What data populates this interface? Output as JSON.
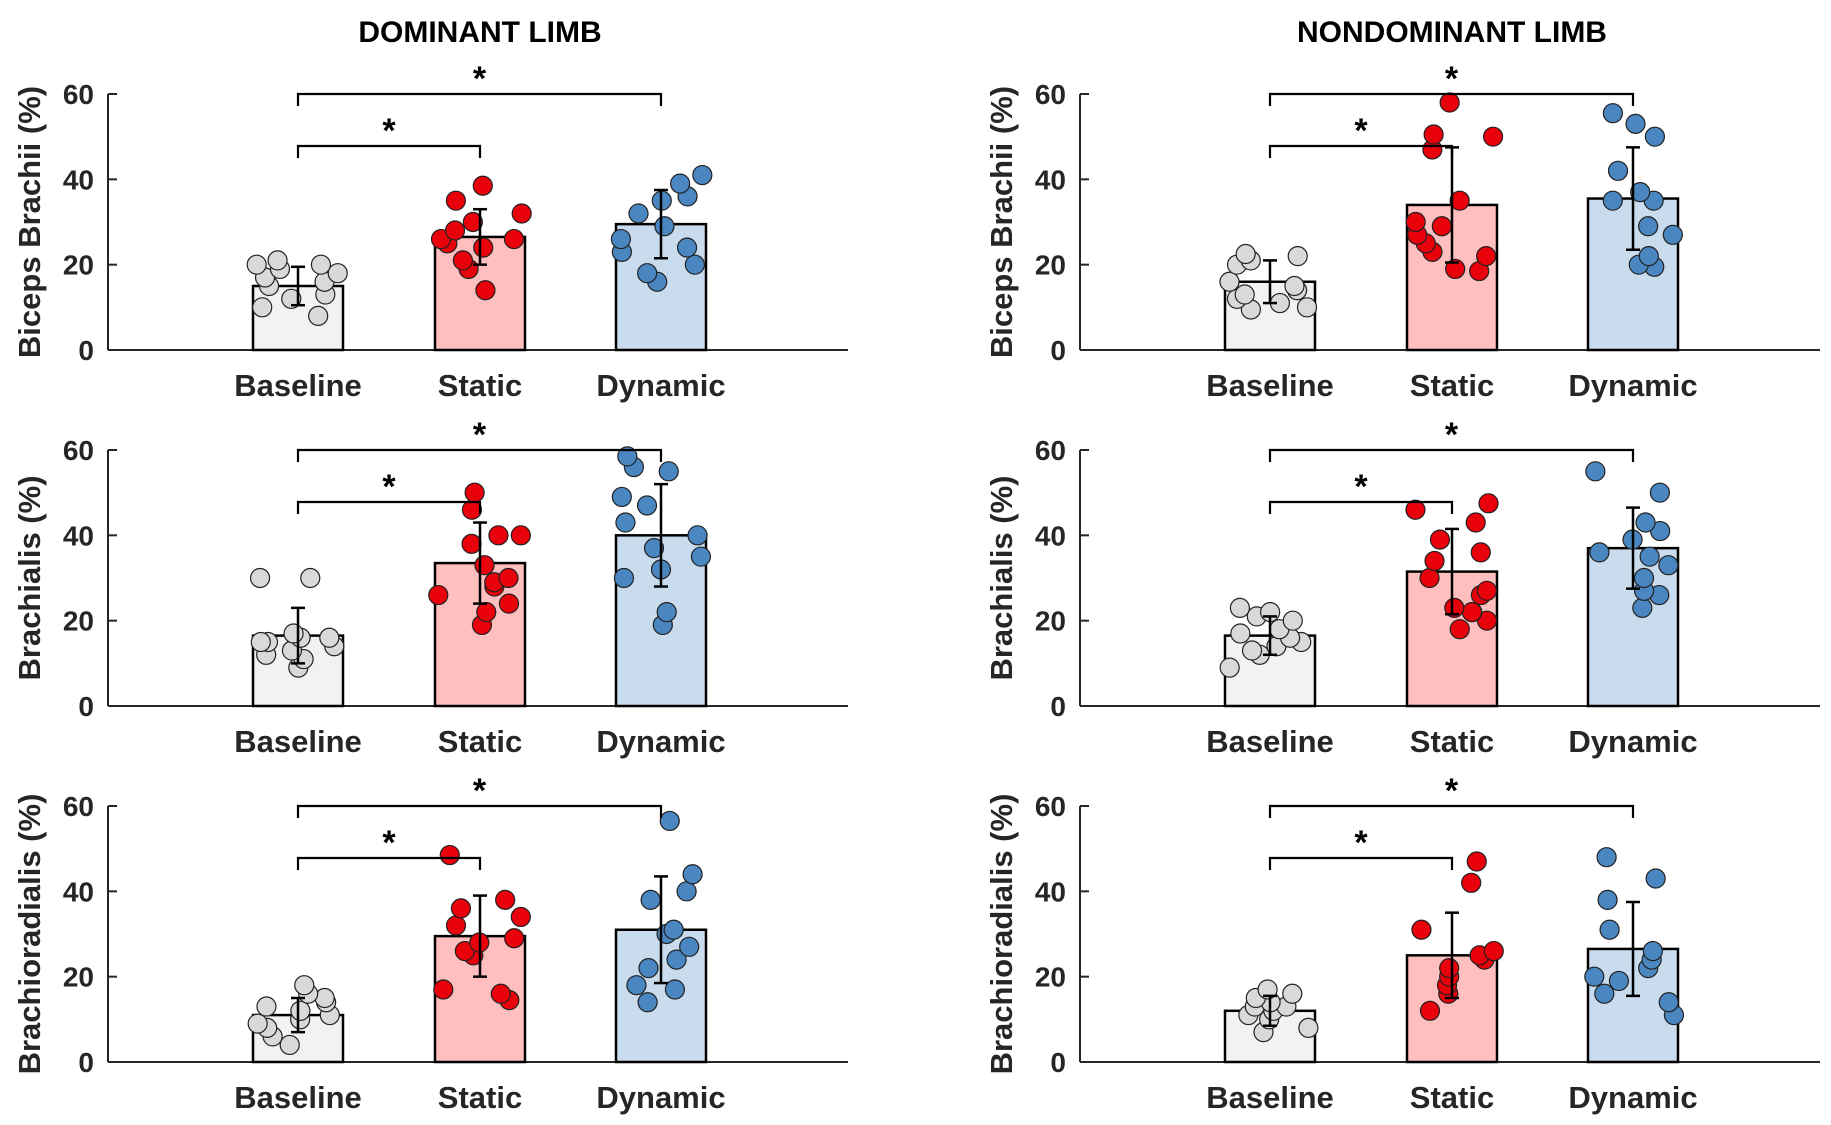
{
  "colors": {
    "baseline_fill": "#f2f2f2",
    "baseline_point": "#d9d9d9",
    "static_fill": "#ffbfbf",
    "static_point": "#e8000b",
    "dynamic_fill": "#c9dcee",
    "dynamic_point": "#4a86c0",
    "axis": "#262626"
  },
  "columns": [
    "DOMINANT LIMB",
    "NONDOMINANT LIMB"
  ],
  "chart_data": [
    {
      "type": "bar",
      "panel": "dominant-biceps",
      "column_title": "DOMINANT LIMB",
      "ylabel": "Biceps Brachii (%)",
      "ylim": [
        0,
        60
      ],
      "yticks": [
        0,
        20,
        40,
        60
      ],
      "categories": [
        "Baseline",
        "Static",
        "Dynamic"
      ],
      "means": [
        15,
        26.5,
        29.5
      ],
      "sd": [
        4.5,
        6.5,
        8
      ],
      "points": [
        [
          8,
          10,
          12,
          13,
          15,
          16,
          17,
          18,
          19,
          20,
          20,
          21
        ],
        [
          14,
          19,
          21,
          24,
          25,
          26,
          26,
          28,
          30,
          32,
          35,
          38.5
        ],
        [
          16,
          18,
          20,
          23,
          24,
          26,
          29,
          32,
          35,
          36,
          39,
          41
        ]
      ],
      "significance": [
        {
          "from": "Baseline",
          "to": "Static",
          "label": "*"
        },
        {
          "from": "Baseline",
          "to": "Dynamic",
          "label": "*"
        }
      ]
    },
    {
      "type": "bar",
      "panel": "nondominant-biceps",
      "column_title": "NONDOMINANT LIMB",
      "ylabel": "Biceps Brachii (%)",
      "ylim": [
        0,
        60
      ],
      "yticks": [
        0,
        20,
        40,
        60
      ],
      "categories": [
        "Baseline",
        "Static",
        "Dynamic"
      ],
      "means": [
        16,
        34,
        35.5
      ],
      "sd": [
        5,
        13.5,
        12
      ],
      "points": [
        [
          9.5,
          10,
          11,
          12,
          13,
          14,
          15,
          16,
          20,
          21,
          22,
          22.5
        ],
        [
          18.5,
          19,
          22,
          23,
          25,
          27,
          29,
          30,
          35,
          47,
          50,
          50.5,
          58
        ],
        [
          19.5,
          20,
          22,
          27,
          29,
          35,
          35,
          37,
          42,
          50,
          53,
          55.5
        ]
      ],
      "significance": [
        {
          "from": "Baseline",
          "to": "Static",
          "label": "*"
        },
        {
          "from": "Baseline",
          "to": "Dynamic",
          "label": "*"
        }
      ]
    },
    {
      "type": "bar",
      "panel": "dominant-brachialis",
      "column_title": "DOMINANT LIMB",
      "ylabel": "Brachialis (%)",
      "ylim": [
        0,
        60
      ],
      "yticks": [
        0,
        20,
        40,
        60
      ],
      "categories": [
        "Baseline",
        "Static",
        "Dynamic"
      ],
      "means": [
        16.5,
        33.5,
        40
      ],
      "sd": [
        6.5,
        9.5,
        12
      ],
      "points": [
        [
          9,
          11,
          12,
          13,
          14,
          15,
          15,
          16,
          16,
          17,
          30,
          30
        ],
        [
          19,
          22,
          24,
          26,
          28,
          29,
          30,
          33,
          38,
          40,
          40,
          46,
          50
        ],
        [
          19,
          22,
          30,
          32,
          35,
          37,
          40,
          43,
          47,
          49,
          55,
          56,
          58.5
        ]
      ],
      "significance": [
        {
          "from": "Baseline",
          "to": "Static",
          "label": "*"
        },
        {
          "from": "Baseline",
          "to": "Dynamic",
          "label": "*"
        }
      ]
    },
    {
      "type": "bar",
      "panel": "nondominant-brachialis",
      "column_title": "NONDOMINANT LIMB",
      "ylabel": "Brachialis (%)",
      "ylim": [
        0,
        60
      ],
      "yticks": [
        0,
        20,
        40,
        60
      ],
      "categories": [
        "Baseline",
        "Static",
        "Dynamic"
      ],
      "means": [
        16.5,
        31.5,
        37
      ],
      "sd": [
        4.5,
        10,
        9.5
      ],
      "points": [
        [
          9,
          12,
          13,
          14,
          15,
          16,
          17,
          18,
          20,
          21,
          22,
          23
        ],
        [
          18,
          20,
          22,
          22,
          23,
          26,
          27,
          30,
          34,
          36,
          39,
          43,
          46,
          47.5
        ],
        [
          23,
          26,
          27,
          30,
          33,
          35,
          36,
          39,
          41,
          43,
          50,
          55
        ]
      ],
      "significance": [
        {
          "from": "Baseline",
          "to": "Static",
          "label": "*"
        },
        {
          "from": "Baseline",
          "to": "Dynamic",
          "label": "*"
        }
      ]
    },
    {
      "type": "bar",
      "panel": "dominant-brachioradialis",
      "column_title": "DOMINANT LIMB",
      "ylabel": "Brachioradialis (%)",
      "ylim": [
        0,
        60
      ],
      "yticks": [
        0,
        20,
        40,
        60
      ],
      "categories": [
        "Baseline",
        "Static",
        "Dynamic"
      ],
      "means": [
        11,
        29.5,
        31
      ],
      "sd": [
        4,
        9.5,
        12.5
      ],
      "points": [
        [
          4,
          6,
          8,
          9,
          10,
          11,
          12,
          13,
          14,
          15,
          16,
          18
        ],
        [
          14.5,
          16,
          17,
          25,
          26,
          28,
          29,
          32,
          34,
          36,
          38,
          48.5
        ],
        [
          14,
          17,
          18,
          22,
          24,
          27,
          30,
          31,
          38,
          40,
          44,
          56.5
        ]
      ],
      "significance": [
        {
          "from": "Baseline",
          "to": "Static",
          "label": "*"
        },
        {
          "from": "Baseline",
          "to": "Dynamic",
          "label": "*"
        }
      ]
    },
    {
      "type": "bar",
      "panel": "nondominant-brachioradialis",
      "column_title": "NONDOMINANT LIMB",
      "ylabel": "Brachioradialis (%)",
      "ylim": [
        0,
        60
      ],
      "yticks": [
        0,
        20,
        40,
        60
      ],
      "categories": [
        "Baseline",
        "Static",
        "Dynamic"
      ],
      "means": [
        12,
        25,
        26.5
      ],
      "sd": [
        3.5,
        10,
        11
      ],
      "points": [
        [
          7,
          8,
          10,
          11,
          12,
          13,
          13,
          14,
          15,
          16,
          17
        ],
        [
          12,
          16,
          18,
          20,
          22,
          24,
          25,
          26,
          31,
          42,
          47
        ],
        [
          11,
          14,
          16,
          19,
          20,
          22,
          24,
          26,
          31,
          38,
          43,
          48
        ]
      ],
      "significance": [
        {
          "from": "Baseline",
          "to": "Static",
          "label": "*"
        },
        {
          "from": "Baseline",
          "to": "Dynamic",
          "label": "*"
        }
      ]
    }
  ]
}
